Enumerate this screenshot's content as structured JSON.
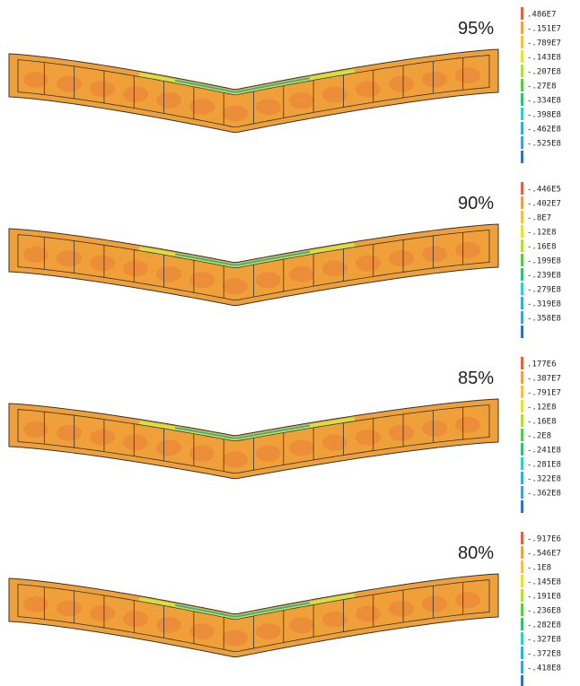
{
  "panels": [
    {
      "label": "95%",
      "legend": [
        ".486E7",
        "-.151E7",
        "-.789E7",
        "-.143E8",
        "-.207E8",
        "-.27E8",
        "-.334E8",
        "-.398E8",
        "-.462E8",
        "-.525E8"
      ]
    },
    {
      "label": "90%",
      "legend": [
        "-.446E5",
        "-.402E7",
        "-.8E7",
        "-.12E8",
        "-.16E8",
        "-.199E8",
        "-.239E8",
        "-.279E8",
        "-.319E8",
        "-.358E8"
      ]
    },
    {
      "label": "85%",
      "legend": [
        ".177E6",
        "-.387E7",
        "-.791E7",
        "-.12E8",
        "-.16E8",
        "-.2E8",
        "-.241E8",
        "-.281E8",
        "-.322E8",
        "-.362E8"
      ]
    },
    {
      "label": "80%",
      "legend": [
        "-.917E6",
        "-.546E7",
        "-.1E8",
        "-.145E8",
        "-.191E8",
        "-.236E8",
        "-.282E8",
        "-.327E8",
        "-.372E8",
        "-.418E8"
      ]
    }
  ]
}
